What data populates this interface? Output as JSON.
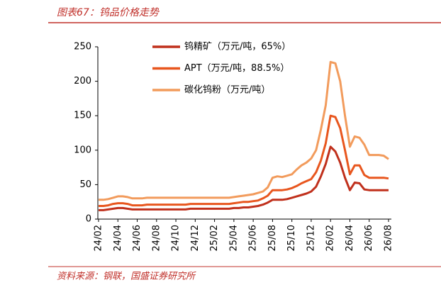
{
  "header": {
    "title": "图表67：钨品价格走势"
  },
  "footer": {
    "source": "资料来源：钢联，国盛证券研究所"
  },
  "chart_data": {
    "type": "line",
    "categories": [
      "24/02",
      null,
      null,
      null,
      "24/04",
      null,
      null,
      null,
      "24/06",
      null,
      null,
      null,
      "24/08",
      null,
      null,
      null,
      "24/10",
      null,
      null,
      null,
      "24/12",
      null,
      null,
      null,
      "25/02",
      null,
      null,
      null,
      "25/04",
      null,
      null,
      null,
      "25/06",
      null,
      null,
      null,
      "25/08",
      null,
      null,
      null,
      "25/10",
      null,
      null,
      null,
      "25/12",
      null,
      null,
      null,
      "26/02",
      null,
      null,
      null,
      "26/04",
      null,
      null,
      null,
      "26/06",
      null,
      null,
      null,
      "26/08"
    ],
    "series": [
      {
        "name": "钨精矿（万元/吨，65%）",
        "color": "#c0301c",
        "values": [
          13,
          13,
          14,
          15,
          16,
          16,
          15,
          14,
          14,
          14,
          14,
          14,
          14,
          14,
          14,
          14,
          14,
          14,
          14,
          15,
          15,
          15,
          15,
          15,
          15,
          15,
          15,
          15,
          16,
          16,
          17,
          17,
          18,
          19,
          21,
          24,
          28,
          28,
          28,
          29,
          31,
          33,
          35,
          37,
          40,
          47,
          62,
          80,
          105,
          98,
          82,
          60,
          42,
          53,
          52,
          43,
          42,
          42,
          42,
          42,
          42
        ]
      },
      {
        "name": "APT（万元/吨，88.5%）",
        "color": "#e8561e",
        "values": [
          19,
          19,
          20,
          22,
          23,
          23,
          22,
          20,
          20,
          20,
          21,
          21,
          21,
          21,
          21,
          21,
          21,
          21,
          21,
          22,
          22,
          22,
          22,
          22,
          22,
          22,
          22,
          22,
          23,
          24,
          25,
          25,
          26,
          27,
          30,
          34,
          42,
          42,
          42,
          43,
          45,
          48,
          52,
          55,
          58,
          68,
          85,
          110,
          150,
          148,
          132,
          100,
          65,
          78,
          78,
          64,
          60,
          60,
          60,
          60,
          59
        ]
      },
      {
        "name": "碳化钨粉（万元/吨）",
        "color": "#f29b5c",
        "values": [
          28,
          28,
          29,
          31,
          33,
          33,
          32,
          30,
          30,
          30,
          31,
          31,
          31,
          31,
          31,
          31,
          31,
          31,
          31,
          31,
          31,
          31,
          31,
          31,
          31,
          31,
          31,
          31,
          32,
          33,
          34,
          35,
          36,
          38,
          40,
          46,
          60,
          62,
          61,
          63,
          65,
          72,
          78,
          82,
          88,
          100,
          130,
          165,
          228,
          226,
          200,
          150,
          105,
          120,
          118,
          108,
          93,
          93,
          93,
          92,
          87
        ]
      }
    ],
    "ylim": [
      0,
      250
    ],
    "yticks": [
      0,
      50,
      100,
      150,
      200,
      250
    ]
  }
}
